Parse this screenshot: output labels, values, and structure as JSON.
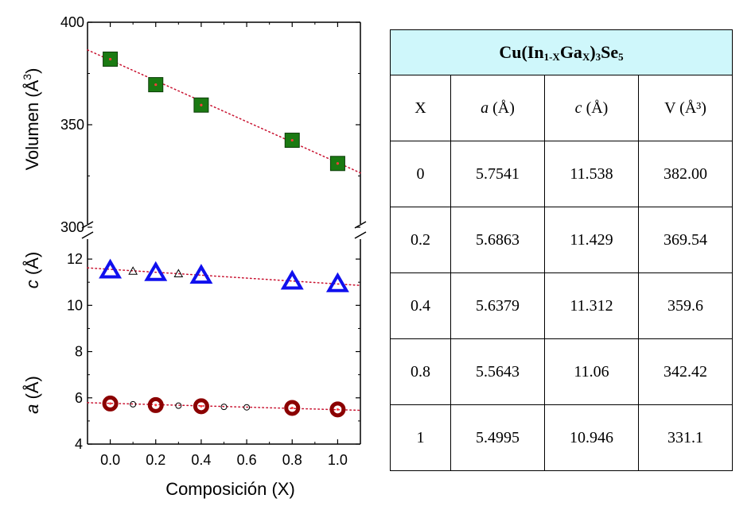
{
  "chart_data": {
    "type": "scatter",
    "xlabel": "Composición (X)",
    "xlim": [
      -0.1,
      1.1
    ],
    "x_ticks": [
      "0.0",
      "0.2",
      "0.4",
      "0.6",
      "0.8",
      "1.0"
    ],
    "x_tick_values": [
      0,
      0.2,
      0.4,
      0.6,
      0.8,
      1.0
    ],
    "panels": [
      {
        "id": "volume",
        "ylabel": "Volumen  (Å",
        "ylabel_sup": "3",
        "ylabel_close": ")",
        "ylim": [
          300,
          400
        ],
        "y_ticks": [
          "300",
          "350",
          "400"
        ],
        "y_tick_values": [
          300,
          350,
          400
        ],
        "series": [
          {
            "marker": "filled-square",
            "color": "#1a7a12",
            "x": [
              0,
              0.2,
              0.4,
              0.8,
              1.0
            ],
            "y": [
              382.0,
              369.54,
              359.6,
              342.42,
              331.1
            ]
          }
        ],
        "fit": {
          "color": "#c8102e",
          "style": "dotted",
          "x": [
            -0.1,
            1.1
          ],
          "y": [
            386.5,
            326.5
          ]
        }
      },
      {
        "id": "lattice",
        "ylabel_c": "c  (Å)",
        "ylabel_a": "a  (Å)",
        "ylim": [
          4,
          13
        ],
        "y_ticks": [
          "4",
          "6",
          "8",
          "10",
          "12"
        ],
        "y_tick_values": [
          4,
          6,
          8,
          10,
          12
        ],
        "series": [
          {
            "marker": "open-triangle",
            "color": "#1010ee",
            "x": [
              0,
              0.2,
              0.4,
              0.8,
              1.0
            ],
            "y": [
              11.538,
              11.429,
              11.312,
              11.06,
              10.946
            ]
          },
          {
            "marker": "small-open-triangle",
            "color": "#000000",
            "x": [
              0.1,
              0.3
            ],
            "y": [
              11.48,
              11.37
            ]
          },
          {
            "marker": "open-circle",
            "color": "#8b0000",
            "x": [
              0,
              0.2,
              0.4,
              0.8,
              1.0
            ],
            "y": [
              5.7541,
              5.6863,
              5.6379,
              5.5643,
              5.4995
            ]
          },
          {
            "marker": "small-open-circle",
            "color": "#000000",
            "x": [
              0.1,
              0.3,
              0.5,
              0.6
            ],
            "y": [
              5.72,
              5.66,
              5.61,
              5.59
            ]
          }
        ],
        "fits": [
          {
            "color": "#c8102e",
            "style": "dotted",
            "x": [
              -0.1,
              1.1
            ],
            "y": [
              11.62,
              10.86
            ]
          },
          {
            "color": "#c8102e",
            "style": "dotted",
            "x": [
              -0.1,
              1.1
            ],
            "y": [
              5.79,
              5.46
            ]
          }
        ]
      }
    ]
  },
  "table": {
    "title_main": "Cu(In",
    "title_sub1": "1-X",
    "title_mid": "Ga",
    "title_sub2": "X",
    "title_close": ")",
    "title_sub3": "3",
    "title_end": "Se",
    "title_sub4": "5",
    "headers": [
      "X",
      "a (Å)",
      "c (Å)",
      "V (Å³)"
    ],
    "rows": [
      [
        "0",
        "5.7541",
        "11.538",
        "382.00"
      ],
      [
        "0.2",
        "5.6863",
        "11.429",
        "369.54"
      ],
      [
        "0.4",
        "5.6379",
        "11.312",
        "359.6"
      ],
      [
        "0.8",
        "5.5643",
        "11.06",
        "342.42"
      ],
      [
        "1",
        "5.4995",
        "10.946",
        "331.1"
      ]
    ]
  }
}
